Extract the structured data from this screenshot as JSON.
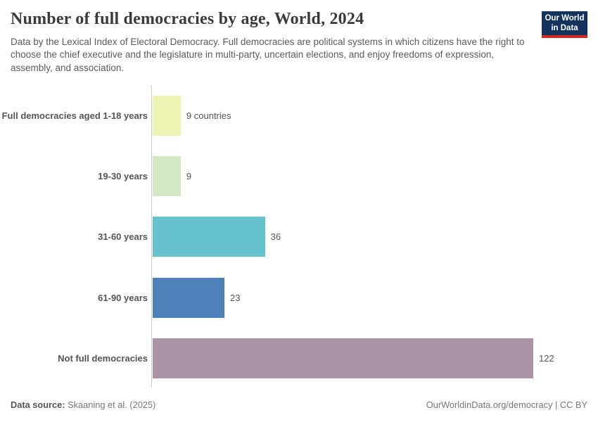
{
  "header": {
    "title": "Number of full democracies by age, World, 2024",
    "subtitle": "Data by the Lexical Index of Electoral Democracy. Full democracies are political systems in which citizens have the right to choose the chief executive and the legislature in multi-party, uncertain elections, and enjoy freedoms of expression, assembly, and association.",
    "logo": {
      "line1": "Our World",
      "line2": "in Data",
      "bg_color": "#13335d",
      "underline_color": "#cf2a24"
    }
  },
  "chart_data": {
    "type": "bar",
    "orientation": "horizontal",
    "title": "Number of full democracies by age, World, 2024",
    "categories": [
      "Full democracies aged 1-18 years",
      "19-30 years",
      "31-60 years",
      "61-90 years",
      "Not full democracies"
    ],
    "values": [
      9,
      9,
      36,
      23,
      122
    ],
    "value_labels": [
      "9 countries",
      "9",
      "36",
      "23",
      "122"
    ],
    "bar_colors": [
      "#edf4b3",
      "#d4e8c6",
      "#66c3cd",
      "#4e81ba",
      "#a993a5"
    ],
    "xlim": [
      0,
      122
    ],
    "grid": false,
    "legend": "none",
    "value_label_position": "right",
    "axis_line_color": "#cccccc"
  },
  "footer": {
    "datasource_label": "Data source:",
    "datasource_value": "Skaaning et al. (2025)",
    "right_text": "OurWorldinData.org/democracy | CC BY"
  }
}
